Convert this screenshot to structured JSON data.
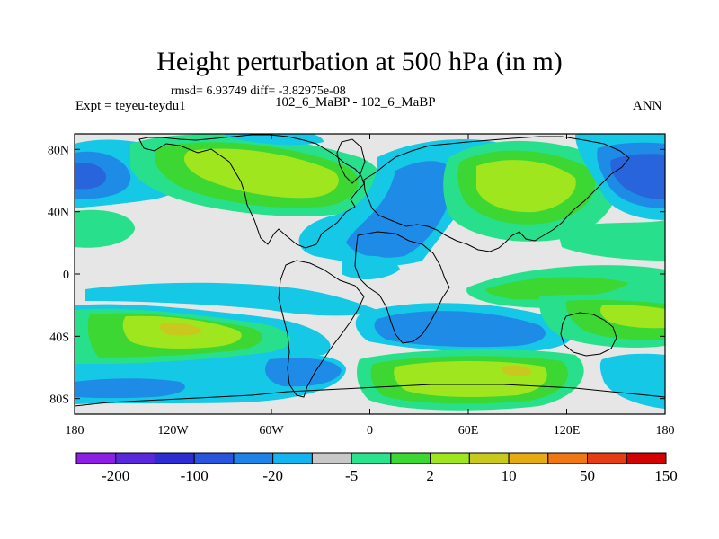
{
  "header": {
    "title": "Height perturbation at 500 hPa (in m)",
    "stats": "rmsd= 6.93749 diff= -3.82975e-08",
    "experiment": "Expt = teyeu-teydu1",
    "case": "102_6_MaBP - 102_6_MaBP",
    "season": "ANN"
  },
  "axes": {
    "lat_ticks": [
      {
        "value": 80,
        "label": "80N"
      },
      {
        "value": 40,
        "label": "40N"
      },
      {
        "value": 0,
        "label": "0"
      },
      {
        "value": -40,
        "label": "40S"
      },
      {
        "value": -80,
        "label": "80S"
      }
    ],
    "lon_ticks": [
      {
        "value": -180,
        "label": "180"
      },
      {
        "value": -120,
        "label": "120W"
      },
      {
        "value": -60,
        "label": "60W"
      },
      {
        "value": 0,
        "label": "0"
      },
      {
        "value": 60,
        "label": "60E"
      },
      {
        "value": 120,
        "label": "120E"
      },
      {
        "value": 180,
        "label": "180"
      }
    ],
    "lon_range": [
      -180,
      180
    ],
    "lat_range": [
      -90,
      90
    ]
  },
  "colorbar": {
    "colors": [
      "#8c1ee6",
      "#5a28dc",
      "#2d2dd2",
      "#2855dc",
      "#1e82e6",
      "#14b4f0",
      "#c8c8c8",
      "#2ae38c",
      "#3cd732",
      "#a0e61e",
      "#c8c81e",
      "#e6aa14",
      "#f07814",
      "#e63c14",
      "#d20000"
    ],
    "labels": [
      {
        "after_box": 1,
        "text": "-200"
      },
      {
        "after_box": 3,
        "text": "-100"
      },
      {
        "after_box": 5,
        "text": "-20"
      },
      {
        "after_box": 7,
        "text": "-5"
      },
      {
        "after_box": 9,
        "text": "2"
      },
      {
        "after_box": 11,
        "text": "10"
      },
      {
        "after_box": 13,
        "text": "50"
      },
      {
        "after_box": 15,
        "text": "150"
      }
    ]
  },
  "field_colors": {
    "background": "#e6e6e6",
    "teal": "#14c8e6",
    "blue": "#1e8ce6",
    "deep_blue": "#2864dc",
    "mint": "#28e08c",
    "green": "#3cd732",
    "lime": "#a0e61e",
    "olive": "#c8c81e"
  }
}
